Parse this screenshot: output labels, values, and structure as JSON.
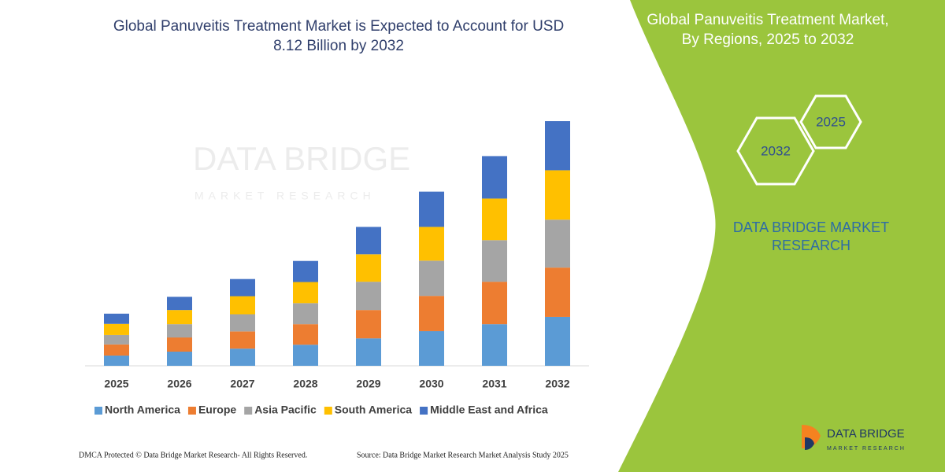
{
  "chart_data": {
    "type": "bar",
    "stacked": true,
    "title": "Global Panuveitis Treatment Market is Expected to Account for USD 8.12 Billion by 2032",
    "categories": [
      "2025",
      "2026",
      "2027",
      "2028",
      "2029",
      "2030",
      "2031",
      "2032"
    ],
    "series": [
      {
        "name": "North America",
        "color": "#5B9BD5",
        "values": [
          0.34,
          0.47,
          0.57,
          0.7,
          0.91,
          1.15,
          1.38,
          1.62
        ]
      },
      {
        "name": "Europe",
        "color": "#ED7D31",
        "values": [
          0.37,
          0.47,
          0.57,
          0.68,
          0.94,
          1.17,
          1.41,
          1.64
        ]
      },
      {
        "name": "Asia Pacific",
        "color": "#A5A5A5",
        "values": [
          0.31,
          0.44,
          0.57,
          0.7,
          0.94,
          1.17,
          1.38,
          1.59
        ]
      },
      {
        "name": "South America",
        "color": "#FFC000",
        "values": [
          0.37,
          0.47,
          0.6,
          0.7,
          0.91,
          1.12,
          1.38,
          1.64
        ]
      },
      {
        "name": "Middle East and Africa",
        "color": "#4472C4",
        "values": [
          0.34,
          0.44,
          0.57,
          0.7,
          0.91,
          1.17,
          1.41,
          1.63
        ]
      }
    ],
    "legend": "bottom"
  },
  "side_panel": {
    "title": "Global Panuveitis Treatment Market, By Regions, 2025 to 2032",
    "hexagons": [
      "2025",
      "2032"
    ],
    "brand": "DATA BRIDGE MARKET RESEARCH"
  },
  "watermark": {
    "name": "DATA BRIDGE",
    "tagline": "MARKET RESEARCH"
  },
  "logo": {
    "name": "DATA BRIDGE",
    "tagline": "MARKET RESEARCH"
  },
  "footer": {
    "copyright": "DMCA Protected © Data Bridge Market Research- All Rights Reserved.",
    "source": "Source: Data Bridge Market Research Market Analysis Study 2025"
  }
}
